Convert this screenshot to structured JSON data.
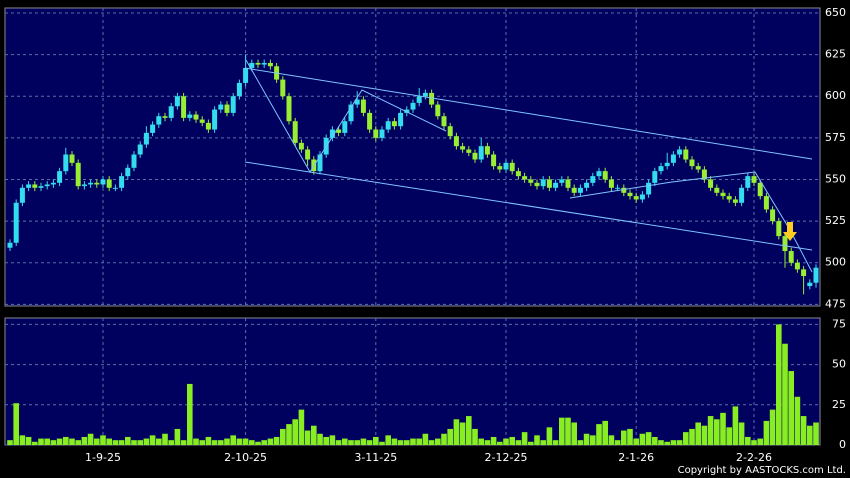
{
  "chart_data": [
    {
      "type": "candlestick",
      "up_color": "#33ddee",
      "down_color": "#99ee33",
      "grid": true,
      "ylim": [
        474,
        653
      ],
      "yticks": [
        475,
        500,
        525,
        550,
        575,
        600,
        625,
        650
      ],
      "categories": [
        null,
        null,
        null,
        null,
        null,
        null,
        null,
        null,
        null,
        null,
        null,
        null,
        null,
        null,
        null,
        "1-9-25",
        null,
        null,
        null,
        null,
        null,
        null,
        null,
        null,
        null,
        null,
        null,
        null,
        null,
        null,
        null,
        null,
        null,
        null,
        null,
        null,
        null,
        null,
        "2-10-25",
        null,
        null,
        null,
        null,
        null,
        null,
        null,
        null,
        null,
        null,
        null,
        null,
        null,
        null,
        null,
        null,
        null,
        null,
        null,
        null,
        "3-11-25",
        null,
        null,
        null,
        null,
        null,
        null,
        null,
        null,
        null,
        null,
        null,
        null,
        null,
        null,
        null,
        null,
        null,
        null,
        null,
        null,
        "2-12-25",
        null,
        null,
        null,
        null,
        null,
        null,
        null,
        null,
        null,
        null,
        null,
        null,
        null,
        null,
        null,
        null,
        null,
        null,
        null,
        null,
        "2-1-26",
        null,
        null,
        null,
        null,
        null,
        null,
        null,
        null,
        null,
        null,
        null,
        null,
        null,
        null,
        null,
        null,
        null,
        null,
        "2-2-26",
        null,
        null,
        null,
        null,
        null,
        null,
        null,
        null,
        null,
        null
      ],
      "open": [
        509,
        512,
        536,
        545,
        547,
        545,
        546,
        547,
        548,
        555,
        565,
        560,
        546,
        547,
        548,
        547,
        550,
        545,
        545,
        552,
        557,
        565,
        571,
        578,
        583,
        588,
        587,
        594,
        600,
        587,
        589,
        586,
        584,
        580,
        592,
        595,
        590,
        600,
        608,
        617,
        620,
        619,
        620,
        618,
        610,
        600,
        585,
        572,
        568,
        562,
        555,
        565,
        575,
        580,
        578,
        585,
        595,
        598,
        590,
        580,
        575,
        580,
        585,
        582,
        590,
        592,
        596,
        600,
        602,
        595,
        588,
        582,
        576,
        570,
        568,
        566,
        562,
        570,
        565,
        558,
        556,
        560,
        555,
        552,
        550,
        548,
        546,
        550,
        545,
        548,
        550,
        545,
        542,
        545,
        548,
        552,
        555,
        550,
        545,
        545,
        542,
        540,
        538,
        541,
        548,
        555,
        558,
        560,
        565,
        568,
        562,
        558,
        556,
        550,
        545,
        542,
        540,
        538,
        536,
        545,
        552,
        548,
        540,
        532,
        525,
        516,
        507,
        500,
        496,
        486,
        488
      ],
      "high": [
        514,
        538,
        547,
        549,
        549,
        548,
        549,
        550,
        557,
        569,
        567,
        562,
        549,
        550,
        550,
        552,
        552,
        547,
        554,
        559,
        567,
        573,
        582,
        585,
        590,
        590,
        596,
        602,
        602,
        591,
        591,
        588,
        586,
        594,
        597,
        597,
        602,
        610,
        625,
        622,
        622,
        622,
        622,
        620,
        612,
        602,
        587,
        574,
        570,
        564,
        567,
        577,
        582,
        582,
        587,
        597,
        603,
        600,
        592,
        582,
        582,
        587,
        587,
        592,
        594,
        598,
        605,
        604,
        604,
        597,
        590,
        584,
        578,
        572,
        570,
        568,
        575,
        572,
        567,
        560,
        562,
        562,
        557,
        554,
        552,
        550,
        552,
        552,
        550,
        552,
        552,
        547,
        547,
        550,
        554,
        557,
        557,
        552,
        547,
        547,
        544,
        542,
        543,
        550,
        557,
        560,
        566,
        567,
        570,
        570,
        564,
        560,
        558,
        552,
        547,
        544,
        542,
        540,
        547,
        554,
        554,
        550,
        542,
        534,
        527,
        518,
        509,
        502,
        498,
        490,
        499
      ],
      "low": [
        507,
        510,
        534,
        543,
        543,
        543,
        544,
        545,
        546,
        553,
        558,
        544,
        544,
        545,
        545,
        545,
        543,
        543,
        543,
        550,
        555,
        563,
        569,
        576,
        581,
        585,
        585,
        592,
        585,
        585,
        584,
        582,
        578,
        578,
        590,
        588,
        588,
        598,
        606,
        615,
        617,
        617,
        616,
        608,
        598,
        583,
        570,
        566,
        558,
        553,
        553,
        563,
        573,
        576,
        576,
        583,
        593,
        588,
        578,
        573,
        573,
        578,
        580,
        580,
        588,
        590,
        594,
        598,
        593,
        586,
        580,
        574,
        568,
        566,
        564,
        560,
        560,
        563,
        556,
        554,
        554,
        553,
        550,
        548,
        546,
        544,
        544,
        543,
        543,
        546,
        543,
        540,
        540,
        543,
        546,
        550,
        548,
        543,
        543,
        540,
        538,
        536,
        536,
        539,
        546,
        553,
        556,
        558,
        563,
        560,
        556,
        554,
        548,
        543,
        540,
        538,
        536,
        534,
        534,
        543,
        546,
        538,
        530,
        523,
        514,
        497,
        498,
        494,
        481,
        484,
        485
      ],
      "close": [
        512,
        536,
        545,
        547,
        545,
        546,
        547,
        548,
        555,
        565,
        560,
        546,
        547,
        548,
        547,
        550,
        545,
        545,
        552,
        557,
        565,
        571,
        578,
        583,
        588,
        587,
        594,
        600,
        587,
        589,
        586,
        584,
        580,
        592,
        595,
        590,
        600,
        608,
        617,
        620,
        619,
        620,
        618,
        610,
        600,
        585,
        572,
        568,
        562,
        555,
        565,
        575,
        580,
        578,
        585,
        595,
        598,
        590,
        580,
        575,
        580,
        585,
        582,
        590,
        592,
        596,
        600,
        602,
        595,
        588,
        582,
        576,
        570,
        568,
        566,
        562,
        570,
        565,
        558,
        556,
        560,
        555,
        552,
        550,
        548,
        546,
        550,
        545,
        548,
        550,
        545,
        542,
        545,
        548,
        552,
        555,
        550,
        545,
        545,
        542,
        540,
        538,
        541,
        548,
        555,
        558,
        560,
        565,
        568,
        562,
        558,
        556,
        550,
        545,
        542,
        540,
        538,
        536,
        545,
        552,
        548,
        540,
        532,
        525,
        516,
        507,
        500,
        496,
        492,
        488,
        497
      ]
    },
    {
      "type": "bar",
      "color": "#88ee22",
      "grid": true,
      "ylim": [
        0,
        79
      ],
      "yticks": [
        0,
        25,
        50,
        75
      ],
      "values": [
        3,
        26,
        6,
        5,
        2,
        4,
        4,
        3,
        4,
        5,
        4,
        3,
        5,
        7,
        4,
        6,
        4,
        3,
        3,
        5,
        3,
        3,
        4,
        6,
        4,
        7,
        3,
        10,
        3,
        38,
        4,
        3,
        5,
        3,
        3,
        4,
        6,
        4,
        4,
        3,
        2,
        3,
        4,
        5,
        10,
        13,
        16,
        22,
        9,
        12,
        7,
        5,
        6,
        3,
        4,
        3,
        3,
        4,
        3,
        5,
        2,
        6,
        4,
        3,
        3,
        4,
        4,
        7,
        3,
        4,
        7,
        10,
        16,
        14,
        18,
        10,
        4,
        3,
        5,
        2,
        4,
        5,
        3,
        8,
        2,
        6,
        3,
        11,
        3,
        17,
        17,
        14,
        3,
        7,
        6,
        13,
        15,
        6,
        3,
        9,
        10,
        4,
        7,
        8,
        5,
        3,
        2,
        3,
        3,
        8,
        10,
        14,
        12,
        18,
        16,
        20,
        11,
        24,
        14,
        5,
        3,
        4,
        15,
        22,
        75,
        63,
        46,
        30,
        18,
        12,
        14
      ],
      "footer": "Copyright by AASTOCKS.com Ltd."
    }
  ]
}
